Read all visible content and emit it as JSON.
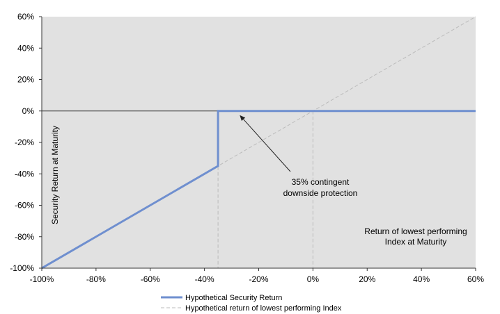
{
  "chart_data": {
    "type": "line",
    "xlim": [
      -100,
      60
    ],
    "ylim": [
      -100,
      60
    ],
    "x_ticks": [
      "-100%",
      "-80%",
      "-60%",
      "-40%",
      "-20%",
      "0%",
      "20%",
      "40%",
      "60%"
    ],
    "y_ticks": [
      "60%",
      "40%",
      "20%",
      "0%",
      "-20%",
      "-40%",
      "-60%",
      "-80%",
      "-100%"
    ],
    "ylabel": "Security Return at Maturity",
    "xlabel_lines": [
      "Return of lowest performing",
      "Index at Maturity"
    ],
    "annotation_lines": [
      "35% contingent",
      "downside protection"
    ],
    "annotation_arrow_target": {
      "x": -27,
      "y": 0
    },
    "reference_vlines": [
      -35,
      0
    ],
    "grid": false,
    "legend_position": "bottom-center",
    "series": [
      {
        "name": "Hypothetical Security Return",
        "color": "#6f8fcf",
        "style": "solid",
        "points": [
          [
            -100,
            -100
          ],
          [
            -35,
            -35
          ],
          [
            -35,
            0
          ],
          [
            60,
            0
          ]
        ]
      },
      {
        "name": "Hypothetical return of lowest performing Index",
        "color": "#bbbbbb",
        "style": "dashed",
        "points": [
          [
            -100,
            -100
          ],
          [
            60,
            60
          ]
        ]
      }
    ]
  }
}
